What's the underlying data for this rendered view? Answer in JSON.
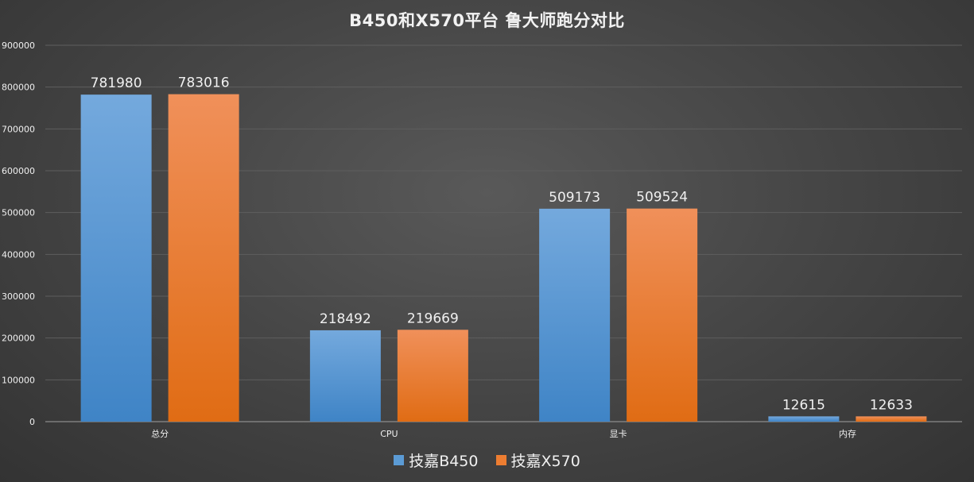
{
  "chart_data": {
    "type": "bar",
    "title": "B450和X570平台 鲁大师跑分对比",
    "categories": [
      "总分",
      "CPU",
      "显卡",
      "内存"
    ],
    "series": [
      {
        "name": "技嘉B450",
        "values": [
          781980,
          218492,
          509173,
          12615
        ],
        "color": "#5b9bd5",
        "color_light": "#74a9dd",
        "color_dark": "#3f84c6"
      },
      {
        "name": "技嘉X570",
        "values": [
          783016,
          219669,
          509524,
          12633
        ],
        "color": "#ed7d31",
        "color_light": "#f0905a",
        "color_dark": "#e06c14"
      }
    ],
    "ylim": [
      0,
      900000
    ],
    "yticks": [
      0,
      100000,
      200000,
      300000,
      400000,
      500000,
      600000,
      700000,
      800000,
      900000
    ],
    "xlabel": "",
    "ylabel": "",
    "grid": true,
    "legend_position": "bottom",
    "data_labels": true
  }
}
